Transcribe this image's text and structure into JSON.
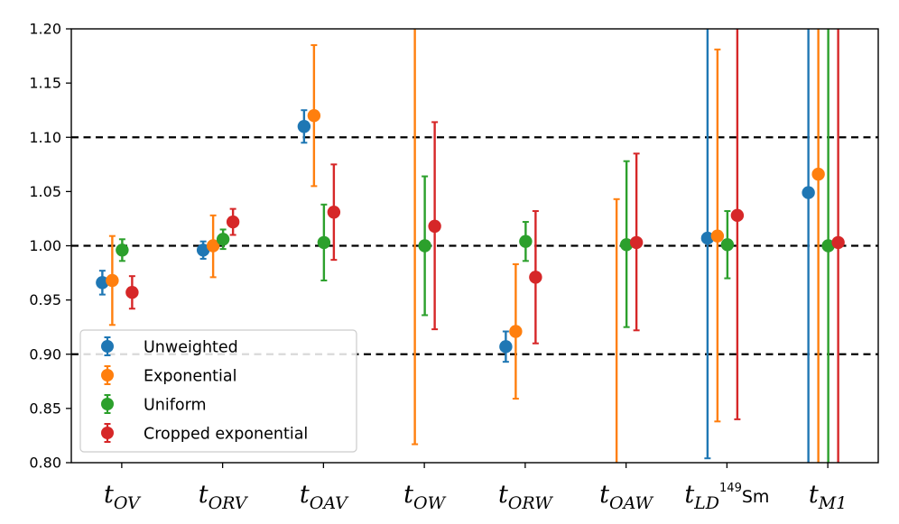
{
  "chart_data": {
    "type": "scatter",
    "title": "",
    "xlabel": "",
    "ylabel": "",
    "ylim": [
      0.8,
      1.2
    ],
    "yticks": [
      "0.80",
      "0.85",
      "0.90",
      "0.95",
      "1.00",
      "1.05",
      "1.10",
      "1.15",
      "1.20"
    ],
    "categories": [
      {
        "base": "t",
        "sub": "OV",
        "sup_pre": "",
        "sub_tail": ""
      },
      {
        "base": "t",
        "sub": "ORV",
        "sup_pre": "",
        "sub_tail": ""
      },
      {
        "base": "t",
        "sub": "OAV",
        "sup_pre": "",
        "sub_tail": ""
      },
      {
        "base": "t",
        "sub": "OW",
        "sup_pre": "",
        "sub_tail": ""
      },
      {
        "base": "t",
        "sub": "ORW",
        "sup_pre": "",
        "sub_tail": ""
      },
      {
        "base": "t",
        "sub": "OAW",
        "sup_pre": "",
        "sub_tail": ""
      },
      {
        "base": "t",
        "sub": "LD",
        "sup_pre": "149",
        "sub_tail": "Sm"
      },
      {
        "base": "t",
        "sub": "M1",
        "sup_pre": "",
        "sub_tail": ""
      }
    ],
    "reference_lines": [
      0.9,
      1.0,
      1.1
    ],
    "grid": false,
    "legend_position": "lower-left",
    "series": [
      {
        "name": "Unweighted",
        "color": "#1f77b4",
        "values": [
          0.966,
          0.996,
          1.11,
          null,
          0.907,
          null,
          1.007,
          1.049
        ],
        "err_low": [
          0.955,
          0.988,
          1.095,
          null,
          0.893,
          null,
          0.804,
          0.8
        ],
        "err_high": [
          0.977,
          1.004,
          1.125,
          null,
          0.921,
          null,
          1.2,
          1.2
        ]
      },
      {
        "name": "Exponential",
        "color": "#ff7f0e",
        "values": [
          0.968,
          1.0,
          1.12,
          null,
          0.921,
          null,
          1.009,
          1.066
        ],
        "err_low": [
          0.927,
          0.971,
          1.055,
          0.817,
          0.859,
          0.8,
          0.838,
          0.8
        ],
        "err_high": [
          1.009,
          1.028,
          1.185,
          1.2,
          0.983,
          1.043,
          1.181,
          1.2
        ]
      },
      {
        "name": "Uniform",
        "color": "#2ca02c",
        "values": [
          0.996,
          1.006,
          1.003,
          1.0,
          1.004,
          1.001,
          1.001,
          1.0
        ],
        "err_low": [
          0.986,
          0.997,
          0.968,
          0.936,
          0.986,
          0.925,
          0.97,
          0.8
        ],
        "err_high": [
          1.006,
          1.015,
          1.038,
          1.064,
          1.022,
          1.078,
          1.032,
          1.2
        ]
      },
      {
        "name": "Cropped exponential",
        "color": "#d62728",
        "values": [
          0.957,
          1.022,
          1.031,
          1.018,
          0.971,
          1.003,
          1.028,
          1.003
        ],
        "err_low": [
          0.942,
          1.01,
          0.987,
          0.923,
          0.91,
          0.922,
          0.84,
          0.8
        ],
        "err_high": [
          0.972,
          1.034,
          1.075,
          1.114,
          1.032,
          1.085,
          1.2,
          1.2
        ]
      }
    ]
  }
}
